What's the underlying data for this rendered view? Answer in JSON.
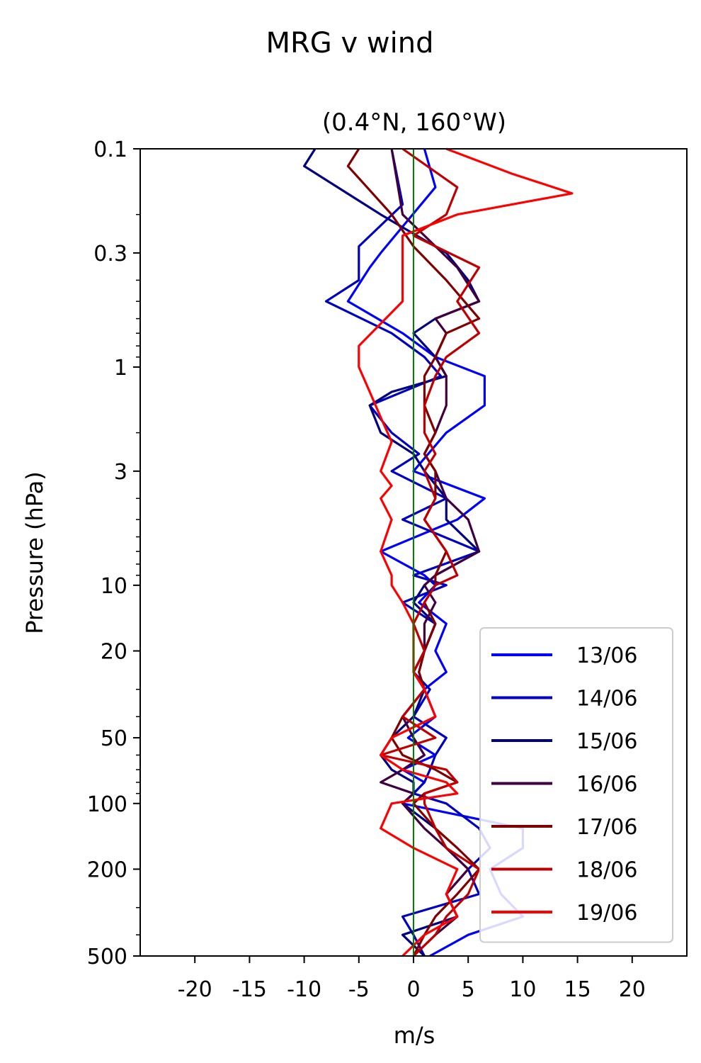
{
  "chart_data": {
    "type": "line",
    "suptitle": "MRG v wind",
    "title": "(0.4°N, 160°W)",
    "xlabel": "m/s",
    "ylabel": "Pressure (hPa)",
    "xlim": [
      -25,
      25
    ],
    "ylim": [
      500,
      0.1
    ],
    "yscale": "log",
    "xticks": [
      -20,
      -15,
      -10,
      -5,
      0,
      5,
      10,
      15,
      20
    ],
    "xtick_labels": [
      "-20",
      "-15",
      "-10",
      "-5",
      "0",
      "5",
      "10",
      "15",
      "20"
    ],
    "yticks": [
      0.1,
      0.3,
      1,
      3,
      10,
      20,
      50,
      100,
      200,
      500
    ],
    "ytick_labels": [
      "0.1",
      "0.3",
      "1",
      "3",
      "10",
      "20",
      "50",
      "100",
      "200",
      "500"
    ],
    "grid": false,
    "legend_position": "lower-right",
    "reference_line": {
      "x": 0,
      "color": "#008000"
    },
    "series": [
      {
        "name": "13/06",
        "color": "#0000ff",
        "p": [
          0.1,
          0.15,
          0.3,
          0.35,
          0.5,
          0.7,
          0.9,
          1.1,
          1.5,
          2,
          3,
          4,
          5,
          7,
          9,
          10,
          12,
          15,
          20,
          25,
          30,
          40,
          50,
          60,
          70,
          80,
          90,
          100,
          130,
          160,
          200,
          260,
          330,
          400,
          500
        ],
        "v": [
          1,
          2,
          -3,
          -4,
          -6,
          -1,
          2,
          6.5,
          6.5,
          3,
          0,
          6.5,
          4,
          -3,
          1,
          2,
          0.5,
          3,
          2,
          3,
          1,
          2,
          -0.5,
          2,
          -1,
          1,
          0,
          -1,
          10,
          10,
          7,
          8,
          10,
          5,
          1.5
        ]
      },
      {
        "name": "14/06",
        "color": "#0000c0",
        "p": [
          0.1,
          0.18,
          0.28,
          0.4,
          0.5,
          0.7,
          0.9,
          1.1,
          1.5,
          2,
          2.5,
          3,
          4,
          5,
          7,
          9,
          10,
          12,
          15,
          20,
          25,
          30,
          40,
          50,
          60,
          70,
          80,
          90,
          100,
          130,
          160,
          200,
          260,
          330,
          400,
          500
        ],
        "v": [
          -2,
          -1,
          -5,
          -5,
          -8,
          -2,
          1,
          2.5,
          -4,
          -2,
          0.5,
          -2,
          3,
          -1,
          6,
          0,
          3,
          -1,
          2,
          1,
          0,
          1.5,
          0,
          3,
          2,
          1.5,
          1,
          0,
          3,
          6,
          7,
          5,
          6,
          -1,
          0,
          1
        ]
      },
      {
        "name": "15/06",
        "color": "#000080",
        "p": [
          0.1,
          0.12,
          0.2,
          0.3,
          0.4,
          0.5,
          0.6,
          0.7,
          0.9,
          1.1,
          1.3,
          1.5,
          2,
          2.5,
          3,
          4,
          5,
          7,
          9,
          10,
          12,
          15,
          20,
          25,
          30,
          40,
          50,
          60,
          70,
          80,
          90,
          100,
          130,
          160,
          200,
          260,
          330,
          400,
          500
        ],
        "v": [
          -9,
          -10,
          -3,
          3,
          5,
          6,
          2,
          0,
          2,
          3,
          -2,
          -4,
          -3,
          0,
          1,
          3,
          3,
          6,
          2,
          1,
          0,
          2,
          1,
          0,
          1,
          0,
          -2,
          -3,
          -2,
          0,
          0,
          -1,
          2,
          3,
          5,
          3,
          4,
          -1,
          1
        ]
      },
      {
        "name": "16/06",
        "color": "#400040",
        "p": [
          0.1,
          0.2,
          0.25,
          0.35,
          0.5,
          0.6,
          0.7,
          0.9,
          1.1,
          1.5,
          2,
          2.5,
          3,
          4,
          5,
          7,
          9,
          10,
          12,
          15,
          20,
          25,
          30,
          40,
          50,
          60,
          70,
          80,
          90,
          100,
          130,
          160,
          200,
          260,
          330,
          400,
          500
        ],
        "v": [
          -2,
          -1,
          1,
          4,
          6,
          2,
          3,
          2,
          3,
          3,
          2,
          1,
          2,
          3,
          5,
          6,
          2,
          1,
          2,
          1,
          1,
          0.5,
          1,
          -1,
          0,
          1,
          -1,
          -3,
          0,
          -1,
          1,
          3,
          5,
          3,
          4,
          2,
          0
        ]
      },
      {
        "name": "17/06",
        "color": "#800000",
        "p": [
          0.1,
          0.12,
          0.2,
          0.28,
          0.4,
          0.6,
          0.7,
          0.9,
          1.1,
          1.5,
          2,
          2.5,
          3,
          4,
          5,
          7,
          9,
          10,
          12,
          15,
          20,
          25,
          30,
          40,
          50,
          60,
          70,
          80,
          90,
          100,
          130,
          160,
          200,
          260,
          330,
          400,
          500
        ],
        "v": [
          -5,
          -6,
          -2,
          0,
          3,
          6,
          3,
          2,
          1,
          1,
          2,
          1,
          2,
          2,
          1,
          3,
          2,
          2,
          1,
          2,
          1,
          0.5,
          1,
          -1,
          -2,
          -1,
          2,
          4,
          1,
          0,
          2,
          4,
          6,
          4,
          2,
          1,
          0
        ]
      },
      {
        "name": "18/06",
        "color": "#c00000",
        "p": [
          0.1,
          0.15,
          0.2,
          0.25,
          0.35,
          0.5,
          0.7,
          0.9,
          1.1,
          1.5,
          2,
          2.5,
          3,
          4,
          5,
          7,
          9,
          10,
          12,
          15,
          20,
          25,
          30,
          40,
          50,
          60,
          70,
          80,
          90,
          100,
          130,
          160,
          200,
          260,
          330,
          400,
          500
        ],
        "v": [
          -1,
          4,
          3,
          0,
          6,
          4,
          6,
          3,
          2,
          1,
          1,
          2,
          1,
          2,
          1,
          3,
          4,
          2,
          1,
          0,
          1,
          0,
          1,
          -1,
          2,
          -3,
          3,
          4,
          1,
          1,
          2,
          3,
          6,
          5,
          3,
          2,
          0
        ]
      },
      {
        "name": "19/06",
        "color": "#ff0000",
        "p": [
          0.1,
          0.13,
          0.16,
          0.2,
          0.25,
          0.3,
          0.5,
          0.8,
          1,
          1.3,
          1.7,
          2.2,
          3,
          3.5,
          4,
          5,
          7,
          9,
          10,
          12,
          15,
          20,
          25,
          30,
          40,
          50,
          60,
          70,
          80,
          90,
          100,
          130,
          160,
          200,
          260,
          330,
          400,
          500
        ],
        "v": [
          3,
          9,
          14.5,
          4,
          -1,
          -1,
          -1,
          -5,
          -5,
          -4,
          -3,
          -2,
          -3,
          -2,
          -3,
          -2,
          -3,
          -2,
          -2,
          -1,
          0,
          0,
          0,
          1,
          2,
          -2,
          -3,
          -1,
          3,
          4,
          -2,
          -3,
          0,
          4,
          3,
          4,
          1,
          -1
        ]
      }
    ]
  }
}
